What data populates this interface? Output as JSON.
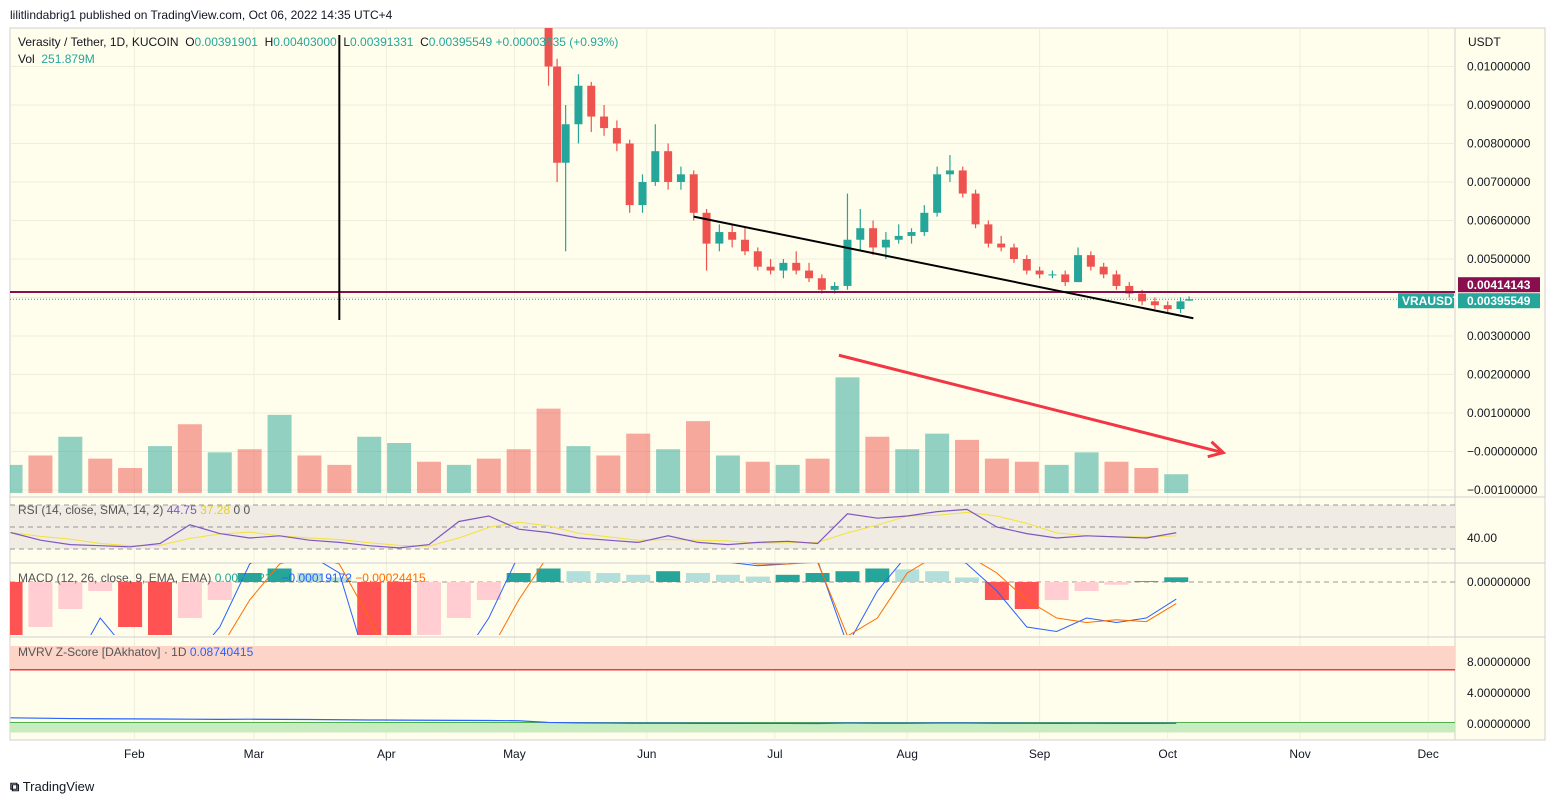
{
  "publisher_line": "lilitlindabrig1 published on TradingView.com, Oct 06, 2022 14:35 UTC+4",
  "legend": {
    "symbol": "Verasity / Tether, 1D, KUCOIN",
    "o_label": "O",
    "o": "0.00391901",
    "h_label": "H",
    "h": "0.00403000",
    "l_label": "L",
    "l": "0.00391331",
    "c_label": "C",
    "c": "0.00395549",
    "change": "+0.00003635 (+0.93%)",
    "vol_label": "Vol",
    "vol": "251.879M"
  },
  "rsi_legend": {
    "label": "RSI (14, close, SMA, 14, 2)",
    "rsi": "44.75",
    "sma": "37.28",
    "v1": "0",
    "v2": "0"
  },
  "macd_legend": {
    "label": "MACD (12, 26, close, 9, EMA, EMA)",
    "hist": "0.00005213",
    "macd": "−0.00019172",
    "signal": "−0.00024415"
  },
  "mvrv_legend": {
    "label": "MVRV Z-Score [DAkhatov] · 1D",
    "value": "0.08740415"
  },
  "currency": "USDT",
  "price_axis": [
    "0.01000000",
    "0.00900000",
    "0.00800000",
    "0.00700000",
    "0.00600000",
    "0.00500000",
    "0.00300000",
    "0.00200000",
    "0.00100000",
    "−0.00000000",
    "−0.00100000"
  ],
  "rsi_axis": "40.00",
  "macd_axis": "0.00000000",
  "mvrv_axis": [
    "8.00000000",
    "4.00000000",
    "0.00000000"
  ],
  "line_tag": "0.00414143",
  "symbol_tag": "VRAUSDT",
  "price_tag": "0.00395549",
  "x_axis": [
    "Feb",
    "Mar",
    "Apr",
    "May",
    "Jun",
    "Jul",
    "Aug",
    "Sep",
    "Oct",
    "Nov",
    "Dec"
  ],
  "brand": "TradingView",
  "colors": {
    "up": "#26a69a",
    "down": "#ef5350",
    "bg": "#fffdeb",
    "hline": "#880e4f",
    "arrow": "#f23645",
    "rsi": "#7e57c2",
    "rsi_sma": "#f5e13b",
    "macd": "#2962ff",
    "signal": "#ff6d00"
  },
  "chart_data": {
    "type": "candlestick",
    "title": "Verasity / Tether, 1D, KUCOIN",
    "ylabel": "USDT",
    "ylim": [
      -0.0011,
      0.0108
    ],
    "candles": [
      [
        "2022-05-09",
        0.011,
        0.0115,
        0.0095,
        0.01
      ],
      [
        "2022-05-11",
        0.01,
        0.0102,
        0.007,
        0.0075
      ],
      [
        "2022-05-13",
        0.0075,
        0.009,
        0.0052,
        0.0085
      ],
      [
        "2022-05-16",
        0.0085,
        0.0098,
        0.008,
        0.0095
      ],
      [
        "2022-05-19",
        0.0095,
        0.0096,
        0.0083,
        0.0087
      ],
      [
        "2022-05-22",
        0.0087,
        0.009,
        0.0082,
        0.0084
      ],
      [
        "2022-05-25",
        0.0084,
        0.0086,
        0.0078,
        0.008
      ],
      [
        "2022-05-28",
        0.008,
        0.0081,
        0.0062,
        0.0064
      ],
      [
        "2022-05-31",
        0.0064,
        0.0072,
        0.0062,
        0.007
      ],
      [
        "2022-06-03",
        0.007,
        0.0085,
        0.0069,
        0.0078
      ],
      [
        "2022-06-06",
        0.0078,
        0.008,
        0.0068,
        0.007
      ],
      [
        "2022-06-09",
        0.007,
        0.0074,
        0.0068,
        0.0072
      ],
      [
        "2022-06-12",
        0.0072,
        0.0073,
        0.006,
        0.0062
      ],
      [
        "2022-06-15",
        0.0062,
        0.0063,
        0.0047,
        0.0054
      ],
      [
        "2022-06-18",
        0.0054,
        0.0059,
        0.0052,
        0.0057
      ],
      [
        "2022-06-21",
        0.0057,
        0.0059,
        0.0053,
        0.0055
      ],
      [
        "2022-06-24",
        0.0055,
        0.0058,
        0.0051,
        0.0052
      ],
      [
        "2022-06-27",
        0.0052,
        0.0053,
        0.0047,
        0.0048
      ],
      [
        "2022-06-30",
        0.0048,
        0.005,
        0.0046,
        0.0047
      ],
      [
        "2022-07-03",
        0.0047,
        0.005,
        0.0045,
        0.0049
      ],
      [
        "2022-07-06",
        0.0049,
        0.0052,
        0.0046,
        0.0047
      ],
      [
        "2022-07-09",
        0.0047,
        0.0049,
        0.0044,
        0.0045
      ],
      [
        "2022-07-12",
        0.0045,
        0.0046,
        0.0041,
        0.0042
      ],
      [
        "2022-07-15",
        0.0042,
        0.0044,
        0.0041,
        0.0043
      ],
      [
        "2022-07-18",
        0.0043,
        0.0067,
        0.0042,
        0.0055
      ],
      [
        "2022-07-21",
        0.0055,
        0.0063,
        0.0052,
        0.0058
      ],
      [
        "2022-07-24",
        0.0058,
        0.006,
        0.0051,
        0.0053
      ],
      [
        "2022-07-27",
        0.0053,
        0.0057,
        0.005,
        0.0055
      ],
      [
        "2022-07-30",
        0.0055,
        0.0059,
        0.0054,
        0.0056
      ],
      [
        "2022-08-02",
        0.0056,
        0.0058,
        0.0054,
        0.0057
      ],
      [
        "2022-08-05",
        0.0057,
        0.0064,
        0.0056,
        0.0062
      ],
      [
        "2022-08-08",
        0.0062,
        0.0074,
        0.0061,
        0.0072
      ],
      [
        "2022-08-11",
        0.0072,
        0.0077,
        0.007,
        0.0073
      ],
      [
        "2022-08-14",
        0.0073,
        0.0074,
        0.0066,
        0.0067
      ],
      [
        "2022-08-17",
        0.0067,
        0.0068,
        0.0058,
        0.0059
      ],
      [
        "2022-08-20",
        0.0059,
        0.006,
        0.0053,
        0.0054
      ],
      [
        "2022-08-23",
        0.0054,
        0.0056,
        0.0052,
        0.0053
      ],
      [
        "2022-08-26",
        0.0053,
        0.0054,
        0.0049,
        0.005
      ],
      [
        "2022-08-29",
        0.005,
        0.0051,
        0.0046,
        0.0047
      ],
      [
        "2022-09-01",
        0.0047,
        0.0048,
        0.0045,
        0.0046
      ],
      [
        "2022-09-04",
        0.0046,
        0.0047,
        0.0045,
        0.0046
      ],
      [
        "2022-09-07",
        0.0046,
        0.0047,
        0.0043,
        0.0044
      ],
      [
        "2022-09-10",
        0.0044,
        0.0053,
        0.0044,
        0.0051
      ],
      [
        "2022-09-13",
        0.0051,
        0.0052,
        0.0047,
        0.0048
      ],
      [
        "2022-09-16",
        0.0048,
        0.0049,
        0.0045,
        0.0046
      ],
      [
        "2022-09-19",
        0.0046,
        0.0047,
        0.0042,
        0.0043
      ],
      [
        "2022-09-22",
        0.0043,
        0.0044,
        0.004,
        0.0041
      ],
      [
        "2022-09-25",
        0.0041,
        0.0042,
        0.0038,
        0.0039
      ],
      [
        "2022-09-28",
        0.0039,
        0.004,
        0.0037,
        0.0038
      ],
      [
        "2022-10-01",
        0.0038,
        0.0039,
        0.0036,
        0.0037
      ],
      [
        "2022-10-04",
        0.0037,
        0.004,
        0.0036,
        0.0039
      ],
      [
        "2022-10-06",
        0.00391901,
        0.00403,
        0.00391331,
        0.00395549
      ]
    ],
    "volume_dates": [
      "2022-01-03",
      "2022-01-10",
      "2022-01-17",
      "2022-01-24",
      "2022-01-31",
      "2022-02-07",
      "2022-02-14",
      "2022-02-21",
      "2022-02-28",
      "2022-03-07",
      "2022-03-14",
      "2022-03-21",
      "2022-03-28",
      "2022-04-04",
      "2022-04-11",
      "2022-04-18",
      "2022-04-25",
      "2022-05-02",
      "2022-05-09",
      "2022-05-16",
      "2022-05-23",
      "2022-05-30",
      "2022-06-06",
      "2022-06-13",
      "2022-06-20",
      "2022-06-27",
      "2022-07-04",
      "2022-07-11",
      "2022-07-18",
      "2022-07-25",
      "2022-08-01",
      "2022-08-08",
      "2022-08-15",
      "2022-08-22",
      "2022-08-29",
      "2022-09-05",
      "2022-09-12",
      "2022-09-19",
      "2022-09-26",
      "2022-10-03"
    ],
    "volume_m": [
      900,
      1200,
      1800,
      1100,
      800,
      1500,
      2200,
      1300,
      1400,
      2500,
      1200,
      900,
      1800,
      1600,
      1000,
      900,
      1100,
      1400,
      2700,
      1500,
      1200,
      1900,
      1400,
      2300,
      1200,
      1000,
      900,
      1100,
      3700,
      1800,
      1400,
      1900,
      1700,
      1100,
      1000,
      900,
      1300,
      1000,
      800,
      600
    ],
    "volume_up": [
      1,
      0,
      1,
      0,
      0,
      1,
      0,
      1,
      0,
      1,
      0,
      0,
      1,
      1,
      0,
      1,
      0,
      0,
      0,
      1,
      0,
      0,
      1,
      0,
      1,
      0,
      1,
      0,
      1,
      0,
      1,
      1,
      0,
      0,
      0,
      1,
      1,
      0,
      0,
      1
    ],
    "rsi": [
      45,
      38,
      34,
      33,
      32,
      35,
      52,
      44,
      40,
      42,
      38,
      36,
      33,
      31,
      34,
      55,
      60,
      48,
      45,
      40,
      38,
      36,
      42,
      36,
      34,
      36,
      37,
      35,
      62,
      58,
      60,
      64,
      66,
      50,
      44,
      40,
      42,
      41,
      40,
      44.75
    ],
    "macd_hist_e5": [
      -60,
      -50,
      -30,
      -10,
      -50,
      -60,
      -40,
      -20,
      10,
      15,
      10,
      5,
      -60,
      -80,
      -70,
      -40,
      -20,
      10,
      15,
      12,
      10,
      8,
      12,
      10,
      8,
      6,
      8,
      10,
      12,
      15,
      14,
      12,
      5,
      -20,
      -30,
      -20,
      -10,
      -3,
      1,
      5.2
    ],
    "macd_e5": [
      -200,
      -150,
      -100,
      -40,
      -80,
      -120,
      -90,
      -50,
      20,
      40,
      30,
      10,
      -100,
      -160,
      -150,
      -90,
      -40,
      30,
      50,
      40,
      30,
      25,
      30,
      28,
      22,
      18,
      20,
      24,
      -70,
      -10,
      30,
      40,
      20,
      -10,
      -50,
      -55,
      -40,
      -45,
      -40,
      -19
    ],
    "signal_e5": [
      -150,
      -140,
      -120,
      -80,
      -70,
      -90,
      -95,
      -75,
      -20,
      20,
      30,
      20,
      -40,
      -110,
      -140,
      -120,
      -80,
      -20,
      30,
      40,
      35,
      30,
      30,
      28,
      25,
      20,
      20,
      22,
      -60,
      -40,
      10,
      30,
      30,
      10,
      -20,
      -40,
      -45,
      -42,
      -44,
      -24
    ],
    "mvrv": [
      0.8,
      0.75,
      0.7,
      0.68,
      0.66,
      0.65,
      0.62,
      0.6,
      0.62,
      0.6,
      0.58,
      0.55,
      0.52,
      0.5,
      0.48,
      0.47,
      0.45,
      0.42,
      0.2,
      0.15,
      0.12,
      0.1,
      0.1,
      0.08,
      0.08,
      0.07,
      0.07,
      0.06,
      0.12,
      0.1,
      0.1,
      0.12,
      0.12,
      0.1,
      0.09,
      0.08,
      0.09,
      0.08,
      0.08,
      0.087
    ],
    "horizontal_line": 0.00414143,
    "trendline": [
      [
        "2022-06-12",
        0.0061
      ],
      [
        "2022-10-07",
        0.00346
      ]
    ],
    "arrow": [
      [
        "2022-07-16",
        0.0025
      ],
      [
        "2022-10-14",
        -3e-05
      ]
    ],
    "vertical_line": "2022-03-21"
  }
}
